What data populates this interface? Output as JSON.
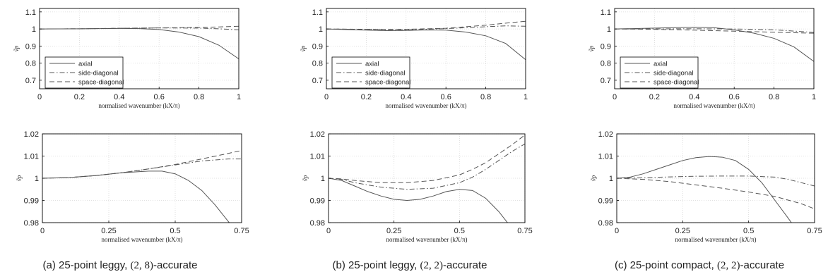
{
  "colors": {
    "axial": "#555555",
    "side": "#555555",
    "space": "#555555",
    "axis": "#000000",
    "grid": "#d9d9d9",
    "text": "#222222"
  },
  "captions": [
    {
      "prefix": "(a) 25-point leggy, ",
      "math": "(2, 8)",
      "suffix": "-accurate"
    },
    {
      "prefix": "(b) 25-point leggy, ",
      "math": "(2, 2)",
      "suffix": "-accurate"
    },
    {
      "prefix": "(c) 25-point compact, ",
      "math": "(2, 2)",
      "suffix": "-accurate"
    }
  ],
  "chart_data": [
    {
      "type": "line",
      "panel": "a-top",
      "xlabel": "normalised wavenumber (kX/π)",
      "ylabel": "ṽp",
      "xlim": [
        0,
        1
      ],
      "ylim": [
        0.65,
        1.12
      ],
      "xticks": [
        0,
        0.2,
        0.4,
        0.6,
        0.8,
        1
      ],
      "xtick_labels": [
        "0",
        "0.2",
        "0.4",
        "0.6",
        "0.8",
        "1"
      ],
      "yticks": [
        0.7,
        0.8,
        0.9,
        1,
        1.1
      ],
      "ytick_labels": [
        "0.7",
        "0.8",
        "0.9",
        "1",
        "1.1"
      ],
      "grid": true,
      "legend": true,
      "legend_position": "bottom-left",
      "series": [
        {
          "name": "axial",
          "style": "solid",
          "x": [
            0,
            0.2,
            0.4,
            0.5,
            0.6,
            0.7,
            0.8,
            0.9,
            1
          ],
          "y": [
            1,
            1.001,
            1.003,
            1.002,
            0.997,
            0.982,
            0.955,
            0.905,
            0.825
          ]
        },
        {
          "name": "side-diagonal",
          "style": "dashdot",
          "x": [
            0,
            0.2,
            0.4,
            0.6,
            0.8,
            0.9,
            1
          ],
          "y": [
            1,
            1.001,
            1.004,
            1.006,
            1.005,
            1.001,
            0.995
          ]
        },
        {
          "name": "space-diagonal",
          "style": "dashed",
          "x": [
            0,
            0.2,
            0.4,
            0.6,
            0.8,
            0.9,
            1
          ],
          "y": [
            1,
            1.001,
            1.004,
            1.006,
            1.009,
            1.012,
            1.016
          ]
        }
      ]
    },
    {
      "type": "line",
      "panel": "b-top",
      "xlabel": "normalised wavenumber (kX/π)",
      "ylabel": "ṽp",
      "xlim": [
        0,
        1
      ],
      "ylim": [
        0.65,
        1.12
      ],
      "xticks": [
        0,
        0.2,
        0.4,
        0.6,
        0.8,
        1
      ],
      "xtick_labels": [
        "0",
        "0.2",
        "0.4",
        "0.6",
        "0.8",
        "1"
      ],
      "yticks": [
        0.7,
        0.8,
        0.9,
        1,
        1.1
      ],
      "ytick_labels": [
        "0.7",
        "0.8",
        "0.9",
        "1",
        "1.1"
      ],
      "grid": true,
      "legend": true,
      "legend_position": "bottom-left",
      "series": [
        {
          "name": "axial",
          "style": "solid",
          "x": [
            0,
            0.2,
            0.3,
            0.4,
            0.5,
            0.6,
            0.7,
            0.8,
            0.9,
            1
          ],
          "y": [
            1,
            0.993,
            0.99,
            0.991,
            0.994,
            0.993,
            0.982,
            0.96,
            0.915,
            0.82
          ]
        },
        {
          "name": "side-diagonal",
          "style": "dashdot",
          "x": [
            0,
            0.2,
            0.4,
            0.6,
            0.8,
            0.9,
            1
          ],
          "y": [
            1,
            0.997,
            0.995,
            1.002,
            1.013,
            1.018,
            1.016
          ]
        },
        {
          "name": "space-diagonal",
          "style": "dashed",
          "x": [
            0,
            0.2,
            0.4,
            0.6,
            0.8,
            0.9,
            1
          ],
          "y": [
            1,
            0.998,
            0.998,
            1.004,
            1.022,
            1.034,
            1.045
          ]
        }
      ]
    },
    {
      "type": "line",
      "panel": "c-top",
      "xlabel": "normalised wavenumber (kX/π)",
      "ylabel": "ṽp",
      "xlim": [
        0,
        1
      ],
      "ylim": [
        0.65,
        1.12
      ],
      "xticks": [
        0,
        0.2,
        0.4,
        0.6,
        0.8,
        1
      ],
      "xtick_labels": [
        "0",
        "0.2",
        "0.4",
        "0.6",
        "0.8",
        "1"
      ],
      "yticks": [
        0.7,
        0.8,
        0.9,
        1,
        1.1
      ],
      "ytick_labels": [
        "0.7",
        "0.8",
        "0.9",
        "1",
        "1.1"
      ],
      "grid": true,
      "legend": true,
      "legend_position": "bottom-left",
      "series": [
        {
          "name": "axial",
          "style": "solid",
          "x": [
            0,
            0.2,
            0.4,
            0.5,
            0.6,
            0.7,
            0.8,
            0.9,
            1
          ],
          "y": [
            1,
            1.005,
            1.01,
            1.007,
            0.995,
            0.975,
            0.945,
            0.895,
            0.81
          ]
        },
        {
          "name": "side-diagonal",
          "style": "dashdot",
          "x": [
            0,
            0.2,
            0.4,
            0.6,
            0.8,
            1
          ],
          "y": [
            1,
            1.0005,
            1.001,
            1,
            0.995,
            0.98
          ]
        },
        {
          "name": "space-diagonal",
          "style": "dashed",
          "x": [
            0,
            0.2,
            0.4,
            0.6,
            0.8,
            1
          ],
          "y": [
            1,
            0.998,
            0.993,
            0.987,
            0.981,
            0.975
          ]
        }
      ]
    },
    {
      "type": "line",
      "panel": "a-bottom",
      "xlabel": "normalised wavenumber (kX/π)",
      "ylabel": "ṽp",
      "xlim": [
        0,
        0.75
      ],
      "ylim": [
        0.98,
        1.02
      ],
      "xticks": [
        0,
        0.25,
        0.5,
        0.75
      ],
      "xtick_labels": [
        "0",
        "0.25",
        "0.5",
        "0.75"
      ],
      "yticks": [
        0.98,
        0.99,
        1,
        1.01,
        1.02
      ],
      "ytick_labels": [
        "0.98",
        "0.99",
        "1",
        "1.01",
        "1.02"
      ],
      "grid": true,
      "legend": false,
      "series": [
        {
          "name": "axial",
          "style": "solid",
          "x": [
            0,
            0.1,
            0.2,
            0.3,
            0.4,
            0.45,
            0.5,
            0.55,
            0.6,
            0.65,
            0.7,
            0.72
          ],
          "y": [
            1,
            1.0003,
            1.0012,
            1.0025,
            1.0032,
            1.0032,
            1.002,
            0.999,
            0.9945,
            0.988,
            0.9805,
            0.9775
          ]
        },
        {
          "name": "side-diagonal",
          "style": "dashdot",
          "x": [
            0,
            0.1,
            0.2,
            0.3,
            0.4,
            0.5,
            0.6,
            0.7,
            0.75
          ],
          "y": [
            1,
            1.0003,
            1.0012,
            1.0025,
            1.0042,
            1.006,
            1.0078,
            1.0087,
            1.0087
          ]
        },
        {
          "name": "space-diagonal",
          "style": "dashed",
          "x": [
            0,
            0.1,
            0.2,
            0.3,
            0.4,
            0.5,
            0.6,
            0.7,
            0.75
          ],
          "y": [
            1,
            1.0003,
            1.0012,
            1.0025,
            1.0042,
            1.0062,
            1.0087,
            1.0112,
            1.0125
          ]
        }
      ]
    },
    {
      "type": "line",
      "panel": "b-bottom",
      "xlabel": "normalised wavenumber (kX/π)",
      "ylabel": "ṽp",
      "xlim": [
        0,
        0.75
      ],
      "ylim": [
        0.98,
        1.02
      ],
      "xticks": [
        0,
        0.25,
        0.5,
        0.75
      ],
      "xtick_labels": [
        "0",
        "0.25",
        "0.5",
        "0.75"
      ],
      "yticks": [
        0.98,
        0.99,
        1,
        1.01,
        1.02
      ],
      "ytick_labels": [
        "0.98",
        "0.99",
        "1",
        "1.01",
        "1.02"
      ],
      "grid": true,
      "legend": false,
      "series": [
        {
          "name": "axial",
          "style": "solid",
          "x": [
            0,
            0.05,
            0.1,
            0.15,
            0.2,
            0.25,
            0.3,
            0.35,
            0.4,
            0.45,
            0.5,
            0.55,
            0.6,
            0.65,
            0.7,
            0.71
          ],
          "y": [
            1,
            0.999,
            0.9965,
            0.994,
            0.992,
            0.9905,
            0.99,
            0.9905,
            0.992,
            0.994,
            0.995,
            0.9945,
            0.991,
            0.985,
            0.9775,
            0.976
          ]
        },
        {
          "name": "side-diagonal",
          "style": "dashdot",
          "x": [
            0,
            0.05,
            0.1,
            0.2,
            0.3,
            0.4,
            0.5,
            0.55,
            0.6,
            0.65,
            0.7,
            0.75
          ],
          "y": [
            1,
            0.9995,
            0.998,
            0.996,
            0.995,
            0.9955,
            0.998,
            1.0005,
            1.004,
            1.008,
            1.012,
            1.0155
          ]
        },
        {
          "name": "space-diagonal",
          "style": "dashed",
          "x": [
            0,
            0.05,
            0.1,
            0.2,
            0.3,
            0.4,
            0.5,
            0.55,
            0.6,
            0.65,
            0.7,
            0.75
          ],
          "y": [
            1,
            0.9997,
            0.999,
            0.998,
            0.998,
            0.999,
            1.0015,
            1.004,
            1.007,
            1.011,
            1.015,
            1.0195
          ]
        }
      ]
    },
    {
      "type": "line",
      "panel": "c-bottom",
      "xlabel": "normalised wavenumber (kX/π)",
      "ylabel": "ṽp",
      "xlim": [
        0,
        0.75
      ],
      "ylim": [
        0.98,
        1.02
      ],
      "xticks": [
        0,
        0.25,
        0.5,
        0.75
      ],
      "xtick_labels": [
        "0",
        "0.25",
        "0.5",
        "0.75"
      ],
      "yticks": [
        0.98,
        0.99,
        1,
        1.01,
        1.02
      ],
      "ytick_labels": [
        "0.98",
        "0.99",
        "1",
        "1.01",
        "1.02"
      ],
      "grid": true,
      "legend": false,
      "series": [
        {
          "name": "axial",
          "style": "solid",
          "x": [
            0,
            0.05,
            0.1,
            0.15,
            0.2,
            0.25,
            0.3,
            0.35,
            0.4,
            0.45,
            0.5,
            0.55,
            0.6,
            0.65,
            0.68
          ],
          "y": [
            1,
            1.0005,
            1.002,
            1.004,
            1.006,
            1.008,
            1.0093,
            1.0098,
            1.0095,
            1.008,
            1.004,
            0.998,
            0.99,
            0.982,
            0.977
          ]
        },
        {
          "name": "side-diagonal",
          "style": "dashdot",
          "x": [
            0,
            0.1,
            0.2,
            0.3,
            0.4,
            0.5,
            0.6,
            0.65,
            0.7,
            0.75
          ],
          "y": [
            1,
            1.0002,
            1.0006,
            1.0009,
            1.001,
            1.001,
            1.0005,
            0.9995,
            0.998,
            0.9965
          ]
        },
        {
          "name": "space-diagonal",
          "style": "dashed",
          "x": [
            0,
            0.1,
            0.2,
            0.3,
            0.4,
            0.5,
            0.6,
            0.7,
            0.75
          ],
          "y": [
            1,
            0.9995,
            0.9985,
            0.997,
            0.9955,
            0.9938,
            0.9918,
            0.9885,
            0.9862
          ]
        }
      ]
    }
  ]
}
